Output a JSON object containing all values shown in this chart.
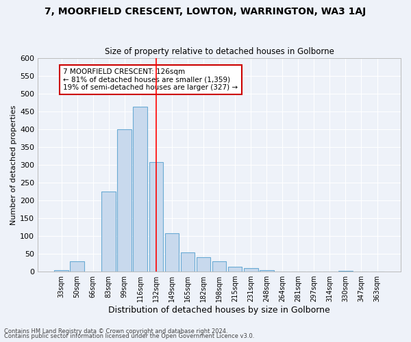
{
  "title1": "7, MOORFIELD CRESCENT, LOWTON, WARRINGTON, WA3 1AJ",
  "title2": "Size of property relative to detached houses in Golborne",
  "xlabel": "Distribution of detached houses by size in Golborne",
  "ylabel": "Number of detached properties",
  "footnote1": "Contains HM Land Registry data © Crown copyright and database right 2024.",
  "footnote2": "Contains public sector information licensed under the Open Government Licence v3.0.",
  "categories": [
    "33sqm",
    "50sqm",
    "66sqm",
    "83sqm",
    "99sqm",
    "116sqm",
    "132sqm",
    "149sqm",
    "165sqm",
    "182sqm",
    "198sqm",
    "215sqm",
    "231sqm",
    "248sqm",
    "264sqm",
    "281sqm",
    "297sqm",
    "314sqm",
    "330sqm",
    "347sqm",
    "363sqm"
  ],
  "values": [
    5,
    30,
    0,
    225,
    400,
    462,
    308,
    108,
    55,
    40,
    30,
    13,
    10,
    5,
    0,
    0,
    0,
    0,
    3,
    0,
    0
  ],
  "bar_color": "#c8d9ed",
  "bar_edge_color": "#6aaad4",
  "background_color": "#eef2f9",
  "grid_color": "#ffffff",
  "red_line_x": 6.0,
  "annotation_text": "7 MOORFIELD CRESCENT: 126sqm\n← 81% of detached houses are smaller (1,359)\n19% of semi-detached houses are larger (327) →",
  "annotation_box_color": "#ffffff",
  "annotation_box_edge": "#cc0000",
  "ylim": [
    0,
    600
  ],
  "yticks": [
    0,
    50,
    100,
    150,
    200,
    250,
    300,
    350,
    400,
    450,
    500,
    550,
    600
  ],
  "title1_fontsize": 10,
  "title2_fontsize": 8.5,
  "xlabel_fontsize": 9,
  "ylabel_fontsize": 8,
  "xtick_fontsize": 7,
  "ytick_fontsize": 8,
  "footnote_fontsize": 6
}
